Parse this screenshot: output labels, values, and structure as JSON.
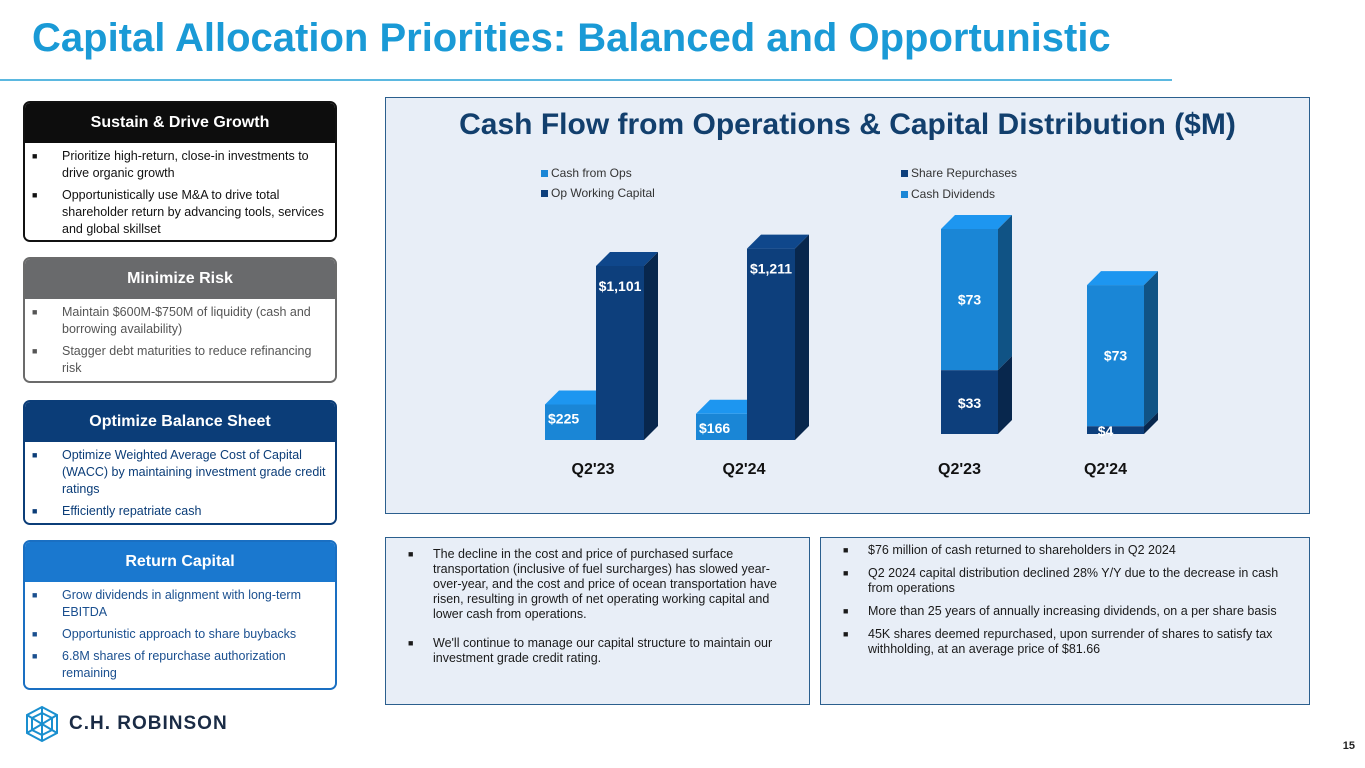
{
  "title": "Capital Allocation Priorities: Balanced and Opportunistic",
  "cards": [
    {
      "heading": "Sustain & Drive Growth",
      "bullets": [
        "Prioritize high-return, close-in investments to drive organic growth",
        "Opportunistically use M&A to drive total shareholder return by advancing tools, services and global skillset"
      ]
    },
    {
      "heading": "Minimize Risk",
      "bullets": [
        "Maintain $600M-$750M of liquidity (cash and borrowing availability)",
        "Stagger debt maturities to reduce refinancing risk"
      ]
    },
    {
      "heading": "Optimize Balance Sheet",
      "bullets": [
        "Optimize Weighted Average Cost of Capital (WACC) by maintaining investment grade credit ratings",
        "Efficiently repatriate cash"
      ]
    },
    {
      "heading": "Return Capital",
      "bullets": [
        "Grow dividends in alignment with long-term EBITDA",
        "Opportunistic approach to share buybacks",
        "6.8M shares of repurchase authorization remaining"
      ]
    }
  ],
  "chart_panel_title": "Cash Flow from Operations & Capital Distribution ($M)",
  "chart_data": [
    {
      "type": "bar",
      "categories": [
        "Q2'23",
        "Q2'24"
      ],
      "series": [
        {
          "name": "Cash from Ops",
          "values": [
            225,
            166
          ],
          "labels": [
            "$225",
            "$166"
          ],
          "color": "#1a86d6"
        },
        {
          "name": "Op Working Capital",
          "values": [
            1101,
            1211
          ],
          "labels": [
            "$1,101",
            "$1,211"
          ],
          "color": "#0d3f7c"
        }
      ]
    },
    {
      "type": "bar",
      "stacked": true,
      "categories": [
        "Q2'23",
        "Q2'24"
      ],
      "series": [
        {
          "name": "Share Repurchases",
          "values": [
            33,
            4
          ],
          "labels": [
            "$33",
            "$4"
          ],
          "color": "#0d3f7c"
        },
        {
          "name": "Cash Dividends",
          "values": [
            73,
            73
          ],
          "labels": [
            "$73",
            "$73"
          ],
          "color": "#1a86d6"
        }
      ]
    }
  ],
  "notes_left": [
    "The decline in the cost and price of purchased surface transportation (inclusive of fuel surcharges) has slowed year-over-year, and the cost and price of ocean transportation have risen, resulting in growth of net operating working capital and lower cash from operations.",
    "We'll continue to manage our capital structure to maintain our investment grade credit rating."
  ],
  "notes_right": [
    "$76 million of cash returned to shareholders in Q2 2024",
    "Q2 2024 capital distribution declined 28% Y/Y due to the decrease in cash from operations",
    "More than 25 years of annually increasing dividends, on a per share basis",
    "45K shares deemed repurchased, upon surrender of shares to satisfy tax withholding, at an average price of $81.66"
  ],
  "logo_text": "C.H. ROBINSON",
  "page_number": "15",
  "colors": {
    "title": "#1a9ad6",
    "navy": "#0d3f7c",
    "blue": "#1a86d6"
  }
}
